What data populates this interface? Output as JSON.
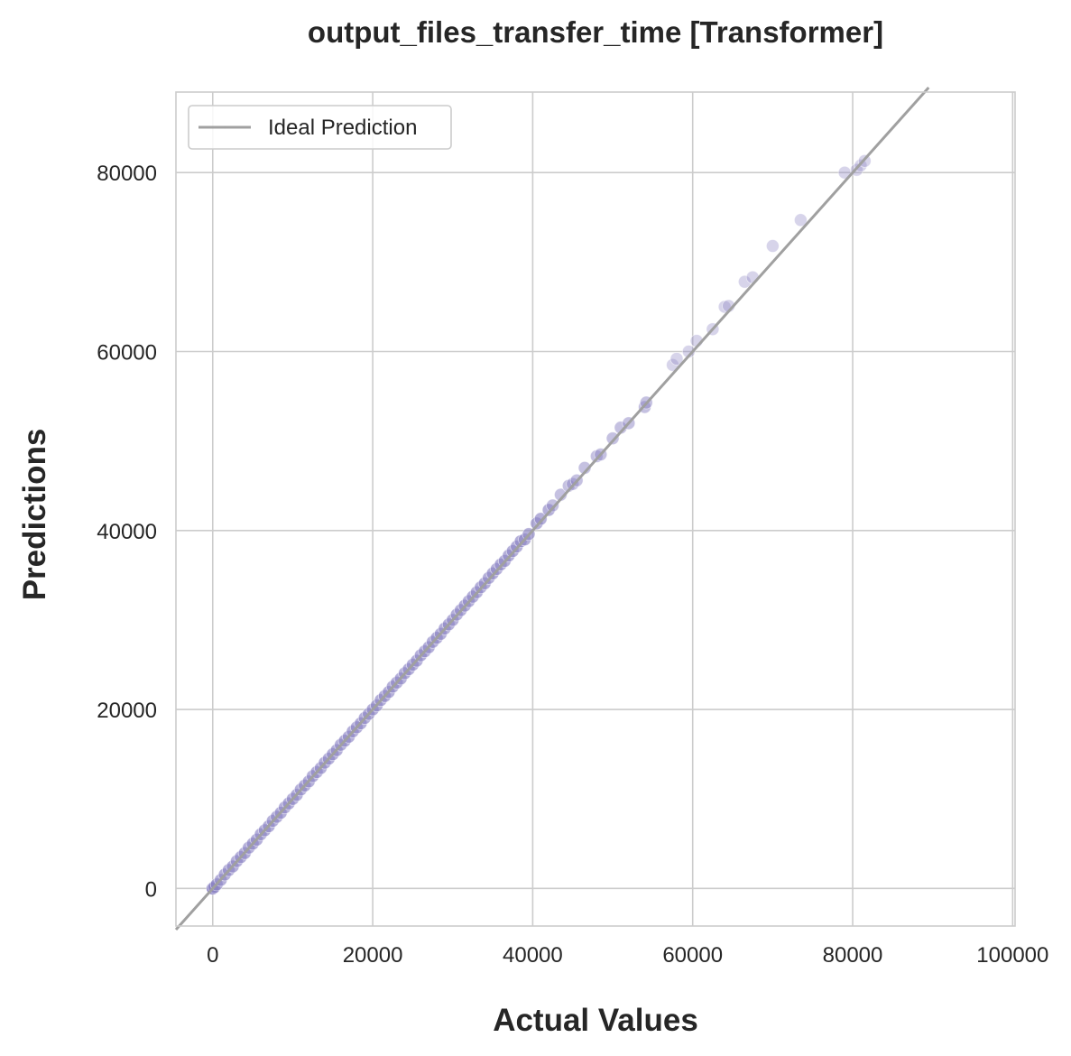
{
  "chart_data": {
    "type": "scatter",
    "title": "output_files_transfer_time [Transformer]",
    "xlabel": "Actual Values",
    "ylabel": "Predictions",
    "xlim": [
      -4600,
      100300
    ],
    "ylim": [
      -4200,
      89000
    ],
    "xticks": [
      0,
      20000,
      40000,
      60000,
      80000,
      100000
    ],
    "yticks": [
      0,
      20000,
      40000,
      60000,
      80000
    ],
    "xtick_labels": [
      "0",
      "20000",
      "40000",
      "60000",
      "80000",
      "100000"
    ],
    "ytick_labels": [
      "0",
      "20000",
      "40000",
      "60000",
      "80000"
    ],
    "grid": true,
    "legend": {
      "position": "top-left",
      "entries": [
        "Ideal Prediction"
      ]
    },
    "point_color": "#8c84c4",
    "line_color": "#a0a0a0",
    "ideal_line": {
      "name": "Ideal Prediction",
      "x": [
        -4600,
        89500
      ],
      "y": [
        -4600,
        89500
      ]
    },
    "points": [
      [
        0,
        0
      ],
      [
        200,
        150
      ],
      [
        500,
        450
      ],
      [
        1000,
        950
      ],
      [
        1500,
        1550
      ],
      [
        2000,
        2050
      ],
      [
        2500,
        2450
      ],
      [
        3000,
        3050
      ],
      [
        3500,
        3500
      ],
      [
        4000,
        3950
      ],
      [
        4500,
        4550
      ],
      [
        5000,
        5000
      ],
      [
        5500,
        5450
      ],
      [
        6000,
        6050
      ],
      [
        6500,
        6500
      ],
      [
        7000,
        6950
      ],
      [
        7500,
        7550
      ],
      [
        8000,
        8000
      ],
      [
        8500,
        8450
      ],
      [
        9000,
        9050
      ],
      [
        9500,
        9500
      ],
      [
        10000,
        10000
      ],
      [
        10500,
        10450
      ],
      [
        11000,
        11050
      ],
      [
        11500,
        11500
      ],
      [
        12000,
        11950
      ],
      [
        12500,
        12550
      ],
      [
        13000,
        13000
      ],
      [
        13500,
        13450
      ],
      [
        14000,
        14050
      ],
      [
        14500,
        14500
      ],
      [
        15000,
        15000
      ],
      [
        15500,
        15450
      ],
      [
        16000,
        16050
      ],
      [
        16500,
        16500
      ],
      [
        17000,
        16950
      ],
      [
        17500,
        17550
      ],
      [
        18000,
        18000
      ],
      [
        18500,
        18450
      ],
      [
        19000,
        19050
      ],
      [
        19500,
        19500
      ],
      [
        20000,
        20000
      ],
      [
        20500,
        20450
      ],
      [
        21000,
        21050
      ],
      [
        21500,
        21500
      ],
      [
        22000,
        21950
      ],
      [
        22500,
        22550
      ],
      [
        23000,
        23000
      ],
      [
        23500,
        23450
      ],
      [
        24000,
        24050
      ],
      [
        24500,
        24500
      ],
      [
        25000,
        25000
      ],
      [
        25500,
        25450
      ],
      [
        26000,
        26050
      ],
      [
        26500,
        26500
      ],
      [
        27000,
        26950
      ],
      [
        27500,
        27550
      ],
      [
        28000,
        28000
      ],
      [
        28500,
        28450
      ],
      [
        29000,
        29050
      ],
      [
        29500,
        29500
      ],
      [
        30000,
        30000
      ],
      [
        30500,
        30600
      ],
      [
        31000,
        31100
      ],
      [
        31500,
        31600
      ],
      [
        32000,
        32100
      ],
      [
        32500,
        32600
      ],
      [
        33000,
        33100
      ],
      [
        33500,
        33650
      ],
      [
        34000,
        34100
      ],
      [
        34500,
        34700
      ],
      [
        35000,
        35200
      ],
      [
        35500,
        35700
      ],
      [
        36000,
        36200
      ],
      [
        36500,
        36600
      ],
      [
        37000,
        37200
      ],
      [
        37500,
        37700
      ],
      [
        38000,
        38200
      ],
      [
        38500,
        38800
      ],
      [
        39000,
        39000
      ],
      [
        39500,
        39600
      ],
      [
        40500,
        40800
      ],
      [
        41000,
        41300
      ],
      [
        42000,
        42300
      ],
      [
        42500,
        42800
      ],
      [
        43500,
        44000
      ],
      [
        44500,
        45000
      ],
      [
        45000,
        45200
      ],
      [
        45500,
        45600
      ],
      [
        46500,
        47000
      ],
      [
        48000,
        48300
      ],
      [
        48500,
        48500
      ],
      [
        50000,
        50300
      ],
      [
        51000,
        51500
      ],
      [
        52000,
        52000
      ],
      [
        54000,
        53800
      ],
      [
        54200,
        54300
      ],
      [
        57500,
        58500
      ],
      [
        58000,
        59200
      ],
      [
        59500,
        60000
      ],
      [
        60500,
        61200
      ],
      [
        62500,
        62500
      ],
      [
        64000,
        65000
      ],
      [
        64500,
        65100
      ],
      [
        66500,
        67800
      ],
      [
        67500,
        68300
      ],
      [
        70000,
        71800
      ],
      [
        73500,
        74700
      ],
      [
        79000,
        80000
      ],
      [
        80500,
        80300
      ],
      [
        81000,
        80800
      ],
      [
        81500,
        81300
      ]
    ]
  }
}
